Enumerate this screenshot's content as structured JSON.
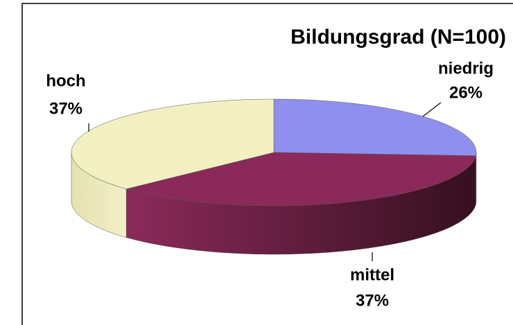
{
  "chart_data": {
    "type": "pie",
    "title": "Bildungsgrad (N=100)",
    "categories": [
      "niedrig",
      "mittel",
      "hoch"
    ],
    "values": [
      26,
      37,
      37
    ],
    "value_labels": [
      "26%",
      "37%",
      "37%"
    ],
    "colors": [
      "#8f8fef",
      "#8b2a5a",
      "#f2f0c0"
    ]
  }
}
